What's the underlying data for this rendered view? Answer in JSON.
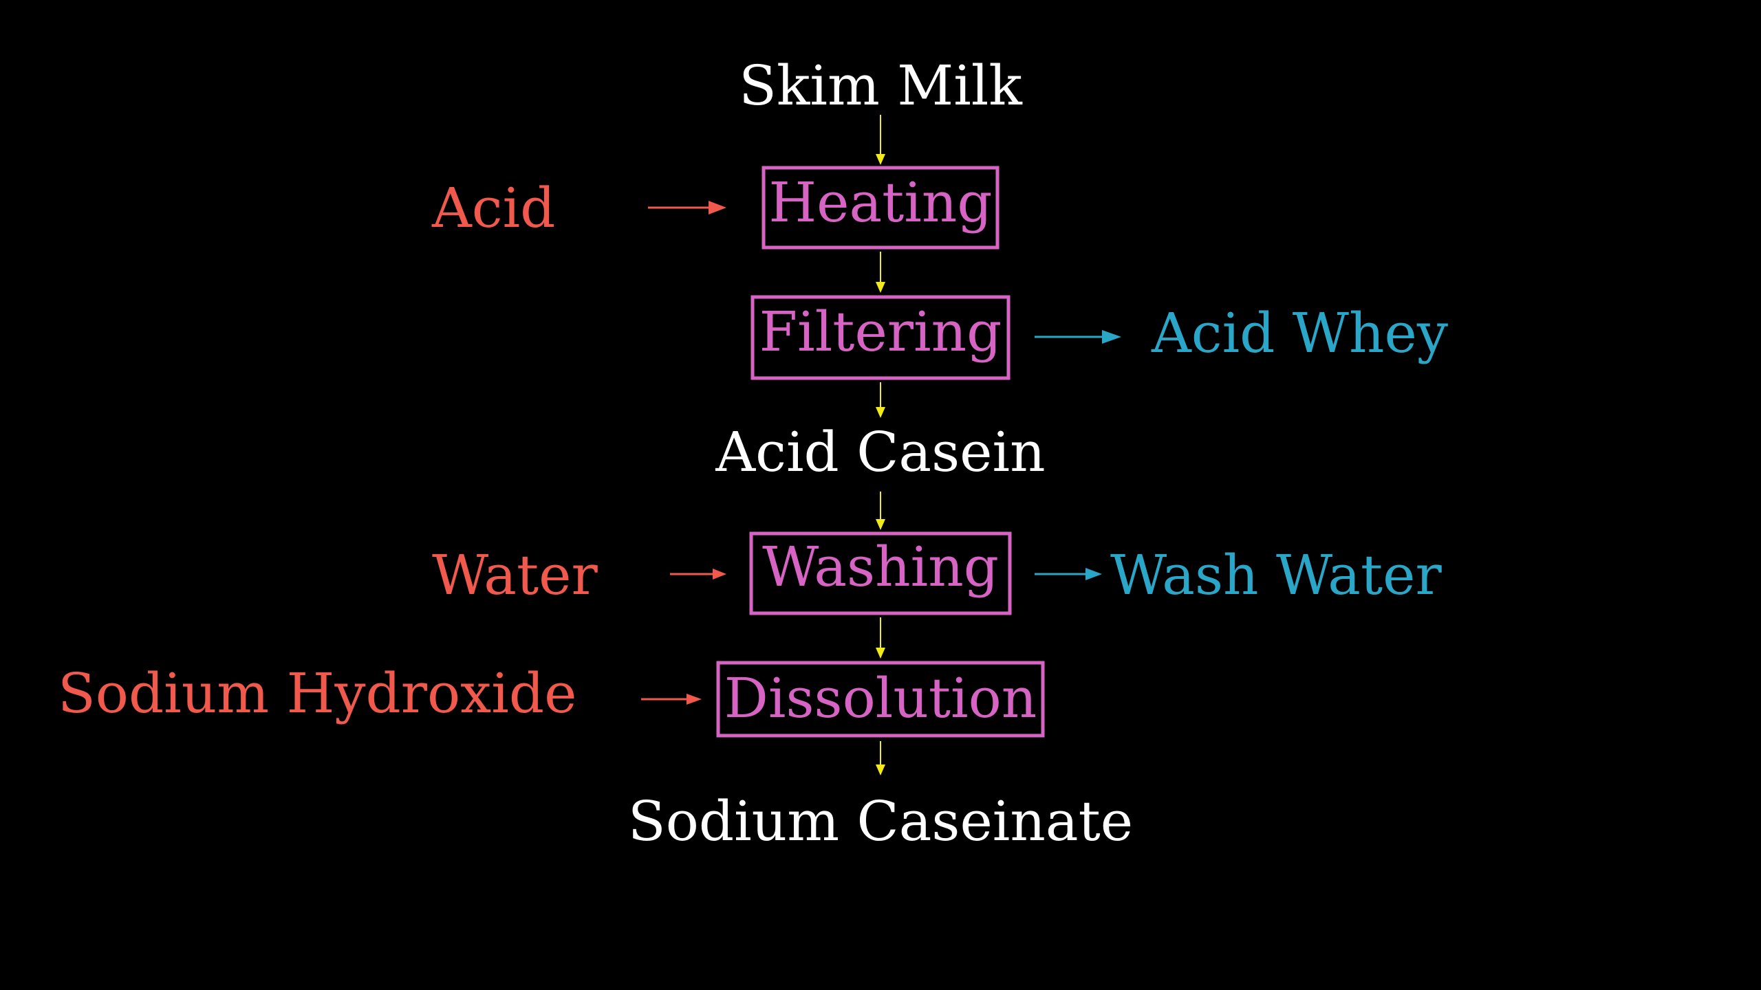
{
  "inputs": {
    "skim_milk": "Skim Milk",
    "acid": "Acid",
    "water": "Water",
    "sodium_hydroxide": "Sodium Hydroxide"
  },
  "processes": {
    "heating": "Heating",
    "filtering": "Filtering",
    "washing": "Washing",
    "dissolution": "Dissolution"
  },
  "intermediates": {
    "acid_casein": "Acid Casein"
  },
  "outputs": {
    "acid_whey": "Acid Whey",
    "wash_water": "Wash Water",
    "sodium_caseinate": "Sodium Caseinate"
  },
  "colors": {
    "background": "#000000",
    "main_flow_text": "#ffffff",
    "input_text": "#f0594c",
    "output_text": "#2aa7c8",
    "process_box": "#d764c4",
    "flow_arrow": "#f2ea18"
  }
}
